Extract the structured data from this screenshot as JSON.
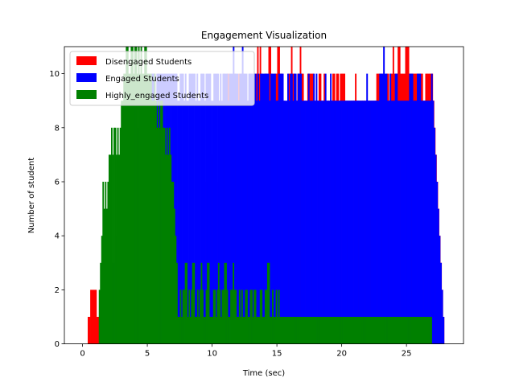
{
  "chart_data": {
    "type": "bar",
    "title": "Engagement Visualization",
    "xlabel": "Time (sec)",
    "ylabel": "Number of student",
    "xlim": [
      -1.4,
      29.4
    ],
    "ylim": [
      0,
      11
    ],
    "xticks": [
      0,
      5,
      10,
      15,
      20,
      25
    ],
    "yticks": [
      0,
      2,
      4,
      6,
      8,
      10
    ],
    "grid": false,
    "legend_position": "top-left",
    "bar_width_sec": 0.1,
    "series": [
      {
        "name": "Disengaged Students",
        "color": "#ff0000",
        "x_start": 0.4,
        "x_end": 27.9,
        "values": [
          1,
          1,
          2,
          2,
          2,
          2,
          2,
          1,
          1,
          1,
          1,
          2,
          1,
          0,
          0,
          0,
          0,
          0,
          0,
          0,
          0,
          0,
          0,
          0,
          0,
          0,
          0,
          0,
          0,
          0,
          0,
          0,
          0,
          0,
          0,
          0,
          0,
          0,
          0,
          0,
          0,
          0,
          0,
          0,
          0,
          0,
          0,
          0,
          0,
          0,
          0,
          0,
          0,
          0,
          0,
          0,
          0,
          0,
          1,
          1,
          0,
          1,
          0,
          0,
          0,
          0,
          0,
          0,
          0,
          0,
          0,
          0,
          0,
          0,
          0,
          0,
          1,
          1,
          1,
          1,
          2,
          3,
          4,
          4,
          2,
          3,
          2,
          1,
          1,
          2,
          2,
          3,
          4,
          5,
          6,
          6,
          5,
          6,
          6,
          7,
          6,
          7,
          8,
          6,
          9,
          8,
          7,
          9,
          10,
          9,
          9,
          10,
          10,
          9,
          9,
          8,
          9,
          10,
          9,
          9,
          10,
          9,
          10,
          10,
          10,
          9,
          9,
          9,
          9,
          10,
          10,
          9,
          9,
          9,
          10,
          11,
          10,
          11,
          10,
          9,
          9,
          10,
          10,
          9,
          11,
          11,
          10,
          9,
          9,
          10,
          10,
          11,
          11,
          10,
          10,
          9,
          9,
          8,
          8,
          9,
          10,
          10,
          11,
          10,
          10,
          9,
          9,
          10,
          10,
          11,
          10,
          10,
          9,
          9,
          9,
          10,
          10,
          10,
          10,
          10,
          9,
          9,
          9,
          9,
          10,
          10,
          9,
          9,
          10,
          9,
          9,
          9,
          9,
          9,
          9,
          10,
          10,
          9,
          10,
          10,
          9,
          10,
          10,
          10,
          10,
          9,
          9,
          9,
          9,
          9,
          9,
          9,
          9,
          10,
          9,
          9,
          9,
          9,
          9,
          9,
          9,
          9,
          9,
          9,
          9,
          9,
          9,
          9,
          9,
          9,
          10,
          10,
          10,
          10,
          10,
          9,
          9,
          9,
          10,
          10,
          9,
          10,
          10,
          11,
          10,
          10,
          10,
          11,
          11,
          10,
          10,
          10,
          10,
          11,
          11,
          11,
          10,
          10,
          10,
          10,
          10,
          10,
          10,
          10,
          10,
          10,
          10,
          9,
          9,
          10,
          10,
          10,
          10,
          10,
          10,
          9,
          8,
          7,
          6,
          5,
          4,
          3,
          2,
          1
        ]
      },
      {
        "name": "Engaged Students",
        "color": "#0000ff",
        "x_start": 0.4,
        "x_end": 27.9,
        "values": [
          0,
          0,
          0,
          0,
          0,
          0,
          0,
          0,
          0,
          1,
          2,
          1,
          3,
          4,
          5,
          4,
          3,
          2,
          3,
          3,
          3,
          4,
          4,
          5,
          5,
          6,
          6,
          7,
          7,
          6,
          8,
          8,
          7,
          8,
          8,
          9,
          9,
          9,
          8,
          8,
          9,
          9,
          9,
          9,
          10,
          10,
          10,
          9,
          9,
          10,
          10,
          10,
          9,
          10,
          10,
          10,
          10,
          10,
          10,
          10,
          10,
          10,
          10,
          10,
          10,
          10,
          10,
          10,
          10,
          9,
          9,
          10,
          10,
          10,
          9,
          10,
          9,
          9,
          10,
          10,
          10,
          10,
          10,
          9,
          10,
          9,
          9,
          10,
          10,
          10,
          9,
          10,
          10,
          10,
          10,
          9,
          9,
          10,
          10,
          10,
          10,
          9,
          10,
          9,
          10,
          10,
          10,
          10,
          9,
          10,
          10,
          10,
          11,
          10,
          10,
          10,
          9,
          10,
          10,
          11,
          10,
          10,
          10,
          9,
          10,
          10,
          10,
          10,
          10,
          10,
          9,
          10,
          9,
          10,
          10,
          10,
          10,
          10,
          10,
          10,
          9,
          10,
          10,
          10,
          10,
          9,
          9,
          10,
          10,
          10,
          10,
          9,
          9,
          9,
          10,
          9,
          10,
          10,
          9,
          10,
          10,
          9,
          10,
          10,
          10,
          9,
          9,
          9,
          9,
          9,
          10,
          9,
          9,
          9,
          10,
          9,
          10,
          9,
          9,
          9,
          9,
          9,
          9,
          10,
          9,
          9,
          9,
          10,
          9,
          9,
          9,
          9,
          9,
          9,
          9,
          9,
          9,
          9,
          9,
          9,
          9,
          9,
          9,
          9,
          9,
          9,
          9,
          9,
          9,
          9,
          9,
          9,
          9,
          9,
          9,
          10,
          9,
          9,
          9,
          9,
          9,
          9,
          9,
          9,
          9,
          10,
          10,
          10,
          11,
          10,
          10,
          9,
          9,
          10,
          9,
          9,
          9,
          10,
          10,
          9,
          9,
          9,
          9,
          9,
          9,
          9,
          9,
          9,
          10,
          10,
          10,
          9,
          9,
          9,
          10,
          10,
          10,
          9,
          9,
          9,
          9,
          9,
          9,
          9,
          9,
          10,
          9,
          8,
          7,
          6,
          5,
          4,
          3,
          2,
          1
        ]
      },
      {
        "name": "Highly_engaged Students",
        "color": "#008000",
        "x_start": 0.4,
        "x_end": 27.9,
        "values": [
          0,
          0,
          0,
          0,
          0,
          0,
          0,
          0,
          0,
          2,
          3,
          4,
          6,
          5,
          6,
          5,
          6,
          7,
          7,
          8,
          7,
          8,
          8,
          7,
          8,
          7,
          8,
          9,
          9,
          10,
          10,
          11,
          11,
          10,
          10,
          11,
          11,
          10,
          11,
          11,
          10,
          11,
          10,
          11,
          10,
          10,
          11,
          11,
          10,
          10,
          10,
          10,
          9,
          9,
          10,
          9,
          8,
          9,
          8,
          9,
          9,
          8,
          8,
          7,
          8,
          7,
          8,
          7,
          6,
          6,
          5,
          4,
          3,
          1,
          1,
          2,
          1,
          2,
          2,
          3,
          3,
          1,
          2,
          1,
          2,
          3,
          3,
          1,
          1,
          2,
          1,
          2,
          3,
          2,
          1,
          1,
          2,
          3,
          3,
          1,
          1,
          1,
          2,
          2,
          1,
          2,
          3,
          2,
          1,
          2,
          2,
          3,
          3,
          2,
          1,
          1,
          2,
          2,
          3,
          2,
          2,
          1,
          1,
          2,
          1,
          2,
          1,
          1,
          2,
          2,
          1,
          1,
          2,
          2,
          1,
          2,
          2,
          1,
          1,
          1,
          2,
          2,
          1,
          1,
          2,
          2,
          3,
          3,
          1,
          1,
          2,
          1,
          1,
          2,
          1,
          2,
          1,
          1,
          1,
          1,
          1,
          1,
          1,
          1,
          1,
          1,
          1,
          1,
          1,
          1,
          1,
          1,
          1,
          1,
          1,
          1,
          1,
          1,
          1,
          1,
          1,
          1,
          1,
          1,
          1,
          1,
          1,
          1,
          1,
          1,
          1,
          1,
          1,
          1,
          1,
          1,
          1,
          1,
          1,
          1,
          1,
          1,
          1,
          1,
          1,
          1,
          1,
          1,
          1,
          1,
          1,
          1,
          1,
          1,
          1,
          1,
          1,
          1,
          1,
          1,
          1,
          1,
          1,
          1,
          1,
          1,
          1,
          1,
          1,
          1,
          1,
          1,
          1,
          1,
          1,
          1,
          1,
          1,
          1,
          1,
          1,
          1,
          1,
          1,
          1,
          1,
          1,
          1,
          1,
          1,
          1,
          1,
          1,
          1,
          1,
          1,
          1,
          1,
          1,
          1,
          1,
          1,
          1,
          1,
          1,
          1,
          1,
          1,
          1,
          1,
          1,
          1,
          1,
          1,
          1,
          1,
          1,
          1,
          1,
          1,
          0,
          0,
          0,
          0,
          0,
          0,
          0,
          0,
          0,
          0
        ]
      }
    ]
  }
}
